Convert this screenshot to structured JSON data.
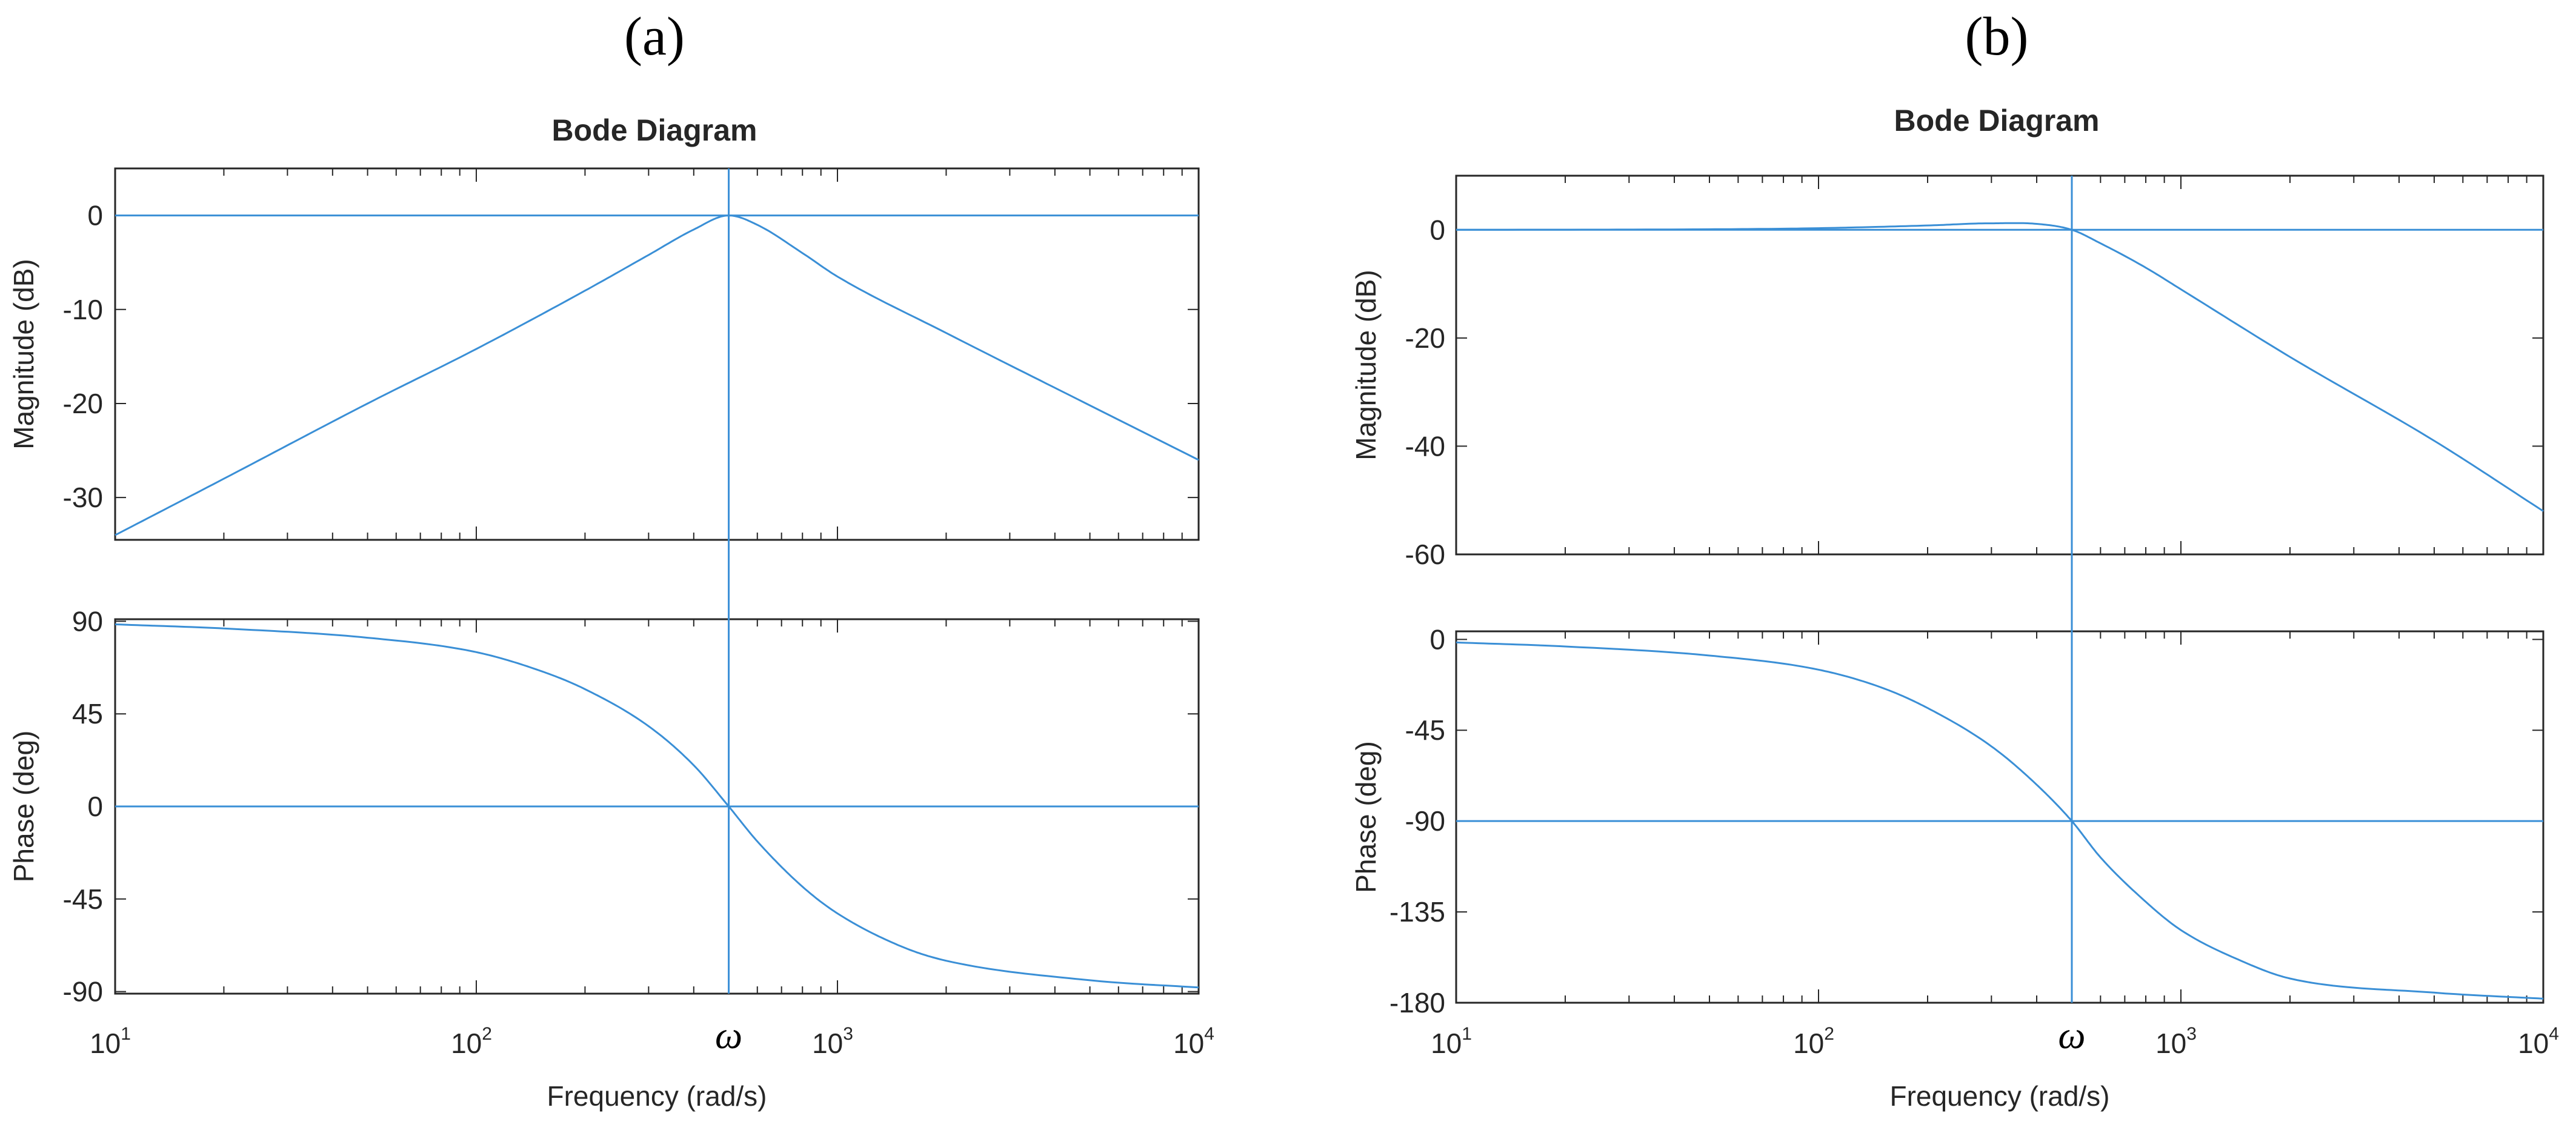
{
  "colors": {
    "line": "#3a8fd6",
    "axis": "#262626",
    "background": "#ffffff"
  },
  "chart_data": [
    {
      "panel": "(a)",
      "type": "line",
      "title": "Bode Diagram",
      "xlabel": "Frequency (rad/s)",
      "xscale": "log",
      "xlim": [
        10,
        10000
      ],
      "x_ticks": [
        {
          "base": "10",
          "exp": "1"
        },
        {
          "base": "10",
          "exp": "2"
        },
        {
          "base": "10",
          "exp": "3"
        },
        {
          "base": "10",
          "exp": "4"
        }
      ],
      "marker_label": "ω",
      "marker_x": 500,
      "magnitude": {
        "ylabel": "Magnitude (dB)",
        "ylim": [
          -34.5,
          5
        ],
        "ticks": [
          "0",
          "-10",
          "-20",
          "-30"
        ],
        "tick_values": [
          0,
          -10,
          -20,
          -30
        ],
        "reference_y": 0,
        "x": [
          10,
          20,
          50,
          100,
          200,
          300,
          400,
          500,
          600,
          800,
          1000,
          2000,
          5000,
          10000
        ],
        "values": [
          -34.0,
          -28.0,
          -20.0,
          -14.2,
          -8.0,
          -4.2,
          -1.5,
          0.0,
          -1.0,
          -4.0,
          -6.5,
          -12.5,
          -20.2,
          -26.0
        ]
      },
      "phase": {
        "ylabel": "Phase (deg)",
        "ylim": [
          -91,
          91
        ],
        "ticks": [
          "90",
          "45",
          "0",
          "-45",
          "-90"
        ],
        "tick_values": [
          90,
          45,
          0,
          -45,
          -90
        ],
        "reference_y": 0,
        "x": [
          10,
          20,
          50,
          100,
          150,
          200,
          300,
          400,
          500,
          600,
          800,
          1000,
          1500,
          2000,
          5000,
          10000
        ],
        "values": [
          88.5,
          86.5,
          82.0,
          75.0,
          66.0,
          57.0,
          39.0,
          20.0,
          0.0,
          -17.0,
          -39.0,
          -52.0,
          -68.0,
          -75.0,
          -84.5,
          -88.0
        ]
      }
    },
    {
      "panel": "(b)",
      "type": "line",
      "title": "Bode Diagram",
      "xlabel": "Frequency (rad/s)",
      "xscale": "log",
      "xlim": [
        10,
        10000
      ],
      "x_ticks": [
        {
          "base": "10",
          "exp": "1"
        },
        {
          "base": "10",
          "exp": "2"
        },
        {
          "base": "10",
          "exp": "3"
        },
        {
          "base": "10",
          "exp": "4"
        }
      ],
      "marker_label": "ω",
      "marker_x": 500,
      "magnitude": {
        "ylabel": "Magnitude (dB)",
        "ylim": [
          -60,
          10
        ],
        "ticks": [
          "0",
          "-20",
          "-40",
          "-60"
        ],
        "tick_values": [
          0,
          -20,
          -40,
          -60
        ],
        "reference_y": 0,
        "x": [
          10,
          50,
          100,
          200,
          300,
          400,
          500,
          600,
          800,
          1000,
          2000,
          5000,
          10000
        ],
        "values": [
          0.0,
          0.1,
          0.3,
          0.8,
          1.2,
          1.1,
          0.0,
          -2.5,
          -7.0,
          -11.0,
          -23.5,
          -39.0,
          -52.0
        ]
      },
      "phase": {
        "ylabel": "Phase (deg)",
        "ylim": [
          -180,
          4
        ],
        "ticks": [
          "0",
          "-45",
          "-90",
          "-135",
          "-180"
        ],
        "tick_values": [
          0,
          -45,
          -90,
          -135,
          -180
        ],
        "reference_y": -90,
        "x": [
          10,
          20,
          50,
          100,
          150,
          200,
          300,
          400,
          500,
          600,
          800,
          1000,
          1500,
          2000,
          5000,
          10000
        ],
        "values": [
          -1.5,
          -3.5,
          -8.0,
          -15.0,
          -24.0,
          -34.0,
          -53.0,
          -72.0,
          -90.0,
          -108.0,
          -130.0,
          -144.0,
          -160.0,
          -168.0,
          -175.0,
          -178.0
        ]
      }
    }
  ]
}
